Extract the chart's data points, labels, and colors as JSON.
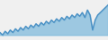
{
  "values": [
    3,
    2,
    3.5,
    2.5,
    4,
    3,
    4.5,
    3.5,
    5,
    4,
    5.5,
    4.5,
    6,
    5,
    6.5,
    5.5,
    7,
    6,
    7.5,
    6.5,
    8,
    7,
    8.5,
    7.5,
    9,
    8,
    9.5,
    8.5,
    10,
    9,
    10.5,
    9.5,
    11,
    9,
    12,
    10,
    4,
    8,
    10,
    11,
    12,
    13,
    14
  ],
  "line_color": "#4a90c4",
  "fill_color": "#7ab8dc",
  "fill_alpha": 0.7,
  "background_color": "#f0f0f0",
  "ylim_min": 0,
  "ylim_max": 16,
  "linewidth": 1.0
}
